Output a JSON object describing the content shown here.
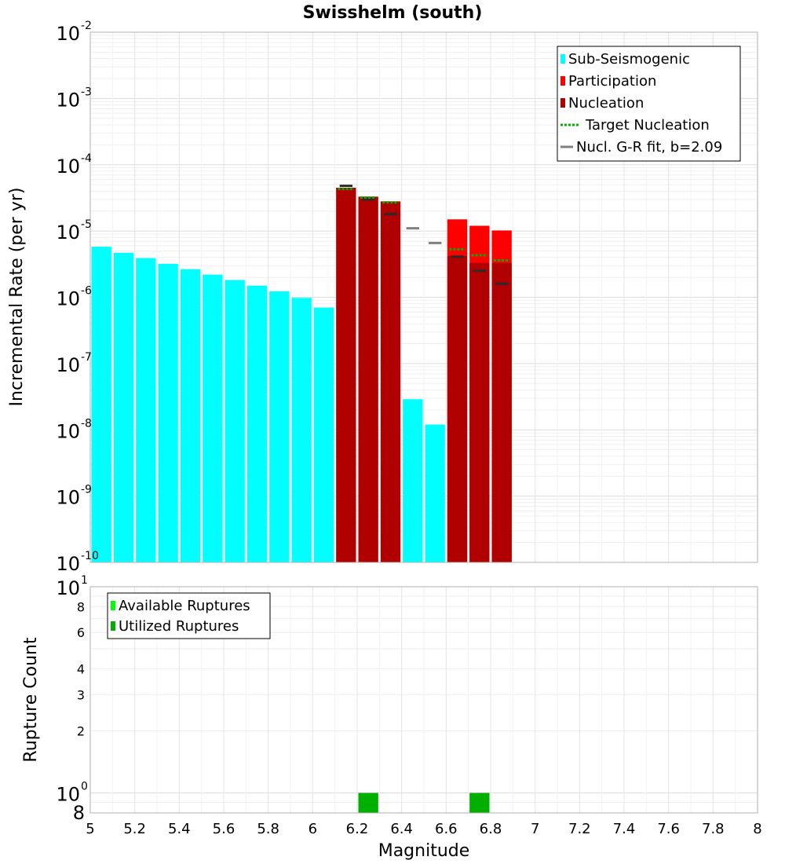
{
  "chart_data": [
    {
      "type": "bar",
      "title": "Swisshelm (south)",
      "xlabel": "",
      "ylabel": "Incremental Rate (per yr)",
      "xlim": [
        5,
        8
      ],
      "ylim": [
        1e-10,
        0.01
      ],
      "yscale": "log",
      "bin_width": 0.1,
      "y_ticks": [
        {
          "base": "10",
          "exp": "-10",
          "value": 1e-10
        },
        {
          "base": "10",
          "exp": "-9",
          "value": 1e-09
        },
        {
          "base": "10",
          "exp": "-8",
          "value": 1e-08
        },
        {
          "base": "10",
          "exp": "-7",
          "value": 1e-07
        },
        {
          "base": "10",
          "exp": "-6",
          "value": 1e-06
        },
        {
          "base": "10",
          "exp": "-5",
          "value": 1e-05
        },
        {
          "base": "10",
          "exp": "-4",
          "value": 0.0001
        },
        {
          "base": "10",
          "exp": "-3",
          "value": 0.001
        },
        {
          "base": "10",
          "exp": "-2",
          "value": 0.01
        }
      ],
      "legend_position": "top-right",
      "legend": [
        {
          "label": "Sub-Seismogenic",
          "color": "#00ffff",
          "kind": "bar"
        },
        {
          "label": "Participation",
          "color": "#ff0000",
          "kind": "bar"
        },
        {
          "label": "Nucleation",
          "color": "#b00000",
          "kind": "bar"
        },
        {
          "label": "Target Nucleation",
          "color": "#00b000",
          "kind": "dotted"
        },
        {
          "label": "Nucl. G-R fit, b=2.09",
          "color": "#808080",
          "kind": "line"
        }
      ],
      "series": [
        {
          "name": "Sub-Seismogenic",
          "color": "#00ffff",
          "points": [
            {
              "x": 5.05,
              "y": 5.8e-06
            },
            {
              "x": 5.15,
              "y": 4.7e-06
            },
            {
              "x": 5.25,
              "y": 3.9e-06
            },
            {
              "x": 5.35,
              "y": 3.2e-06
            },
            {
              "x": 5.45,
              "y": 2.65e-06
            },
            {
              "x": 5.55,
              "y": 2.2e-06
            },
            {
              "x": 5.65,
              "y": 1.82e-06
            },
            {
              "x": 5.75,
              "y": 1.5e-06
            },
            {
              "x": 5.85,
              "y": 1.23e-06
            },
            {
              "x": 5.95,
              "y": 9.8e-07
            },
            {
              "x": 6.05,
              "y": 7e-07
            },
            {
              "x": 6.45,
              "y": 2.9e-08
            },
            {
              "x": 6.55,
              "y": 1.2e-08
            }
          ]
        },
        {
          "name": "Participation",
          "color": "#ff0000",
          "points": [
            {
              "x": 6.65,
              "y": 1.5e-05
            },
            {
              "x": 6.75,
              "y": 1.2e-05
            },
            {
              "x": 6.85,
              "y": 1.02e-05
            }
          ]
        },
        {
          "name": "Nucleation",
          "color": "#b00000",
          "points": [
            {
              "x": 6.15,
              "y": 4.5e-05
            },
            {
              "x": 6.25,
              "y": 3.3e-05
            },
            {
              "x": 6.35,
              "y": 2.8e-05
            },
            {
              "x": 6.65,
              "y": 4.2e-06
            },
            {
              "x": 6.75,
              "y": 3.3e-06
            },
            {
              "x": 6.85,
              "y": 3.3e-06
            }
          ]
        },
        {
          "name": "Target Nucleation",
          "color": "#00b000",
          "points": [
            {
              "x": 6.15,
              "y": 4.3e-05
            },
            {
              "x": 6.25,
              "y": 3.2e-05
            },
            {
              "x": 6.35,
              "y": 2.7e-05
            },
            {
              "x": 6.65,
              "y": 5.3e-06
            },
            {
              "x": 6.75,
              "y": 4.3e-06
            },
            {
              "x": 6.85,
              "y": 3.6e-06
            }
          ]
        },
        {
          "name": "Nucl. G-R fit, b=2.09",
          "color": "#808080",
          "points": [
            {
              "x": 6.15,
              "y": 4.8e-05
            },
            {
              "x": 6.25,
              "y": 3e-05
            },
            {
              "x": 6.35,
              "y": 1.8e-05
            },
            {
              "x": 6.45,
              "y": 1.1e-05
            },
            {
              "x": 6.55,
              "y": 6.6e-06
            },
            {
              "x": 6.65,
              "y": 4.1e-06
            },
            {
              "x": 6.75,
              "y": 2.5e-06
            },
            {
              "x": 6.85,
              "y": 1.6e-06
            }
          ]
        }
      ]
    },
    {
      "type": "bar",
      "title": "",
      "xlabel": "Magnitude",
      "ylabel": "Rupture Count",
      "xlim": [
        5,
        8
      ],
      "ylim": [
        0.8,
        10
      ],
      "yscale": "log",
      "bin_width": 0.1,
      "x_ticks": [
        "5",
        "5.2",
        "5.4",
        "5.6",
        "5.8",
        "6",
        "6.2",
        "6.4",
        "6.6",
        "6.8",
        "7",
        "7.2",
        "7.4",
        "7.6",
        "7.8",
        "8"
      ],
      "y_major_ticks": [
        {
          "base": "10",
          "exp": "0",
          "value": 1
        },
        {
          "base": "10",
          "exp": "1",
          "value": 10
        }
      ],
      "y_minor_ticks": [
        {
          "label": "8",
          "value": 0.8
        },
        {
          "label": "2",
          "value": 2
        },
        {
          "label": "3",
          "value": 3
        },
        {
          "label": "4",
          "value": 4
        },
        {
          "label": "6",
          "value": 6
        },
        {
          "label": "8",
          "value": 8
        }
      ],
      "legend_position": "top-left",
      "legend": [
        {
          "label": "Available Ruptures",
          "color": "#00ff00",
          "kind": "bar"
        },
        {
          "label": "Utilized Ruptures",
          "color": "#00b000",
          "kind": "bar"
        }
      ],
      "series": [
        {
          "name": "Utilized Ruptures",
          "color": "#00b000",
          "points": [
            {
              "x": 6.25,
              "y": 1
            },
            {
              "x": 6.75,
              "y": 1
            }
          ]
        }
      ]
    }
  ]
}
